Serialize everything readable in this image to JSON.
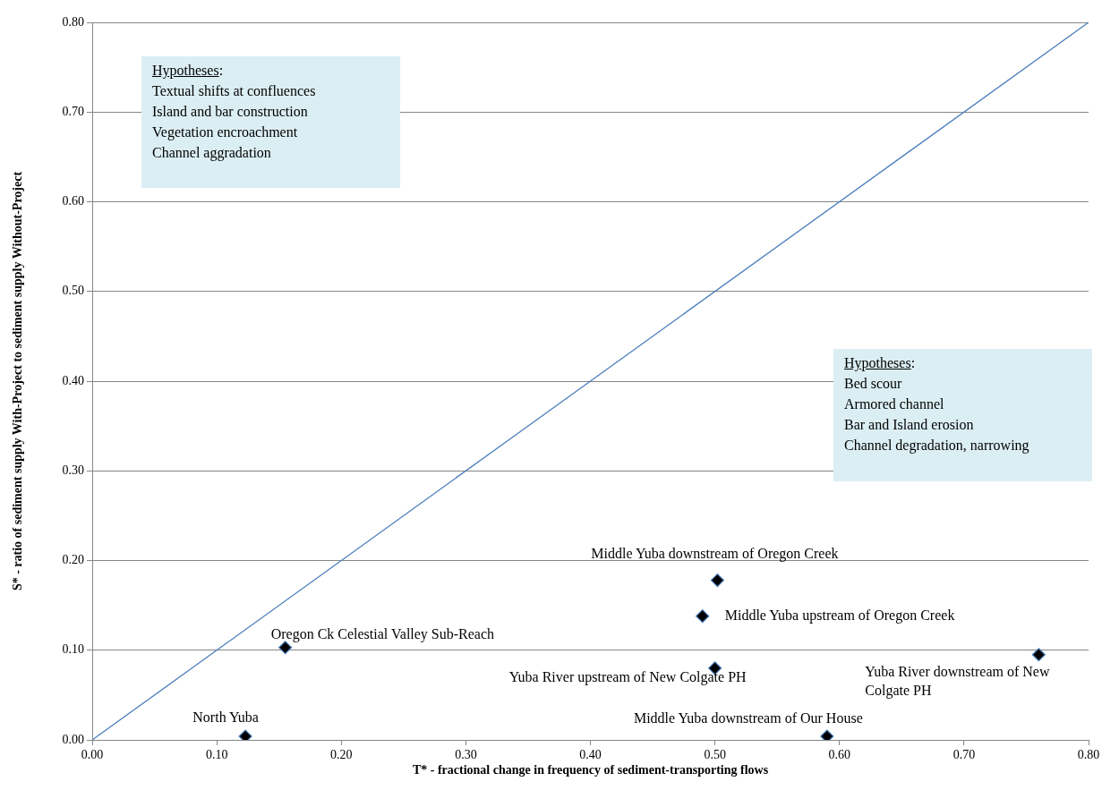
{
  "chart_data": {
    "type": "scatter",
    "xlabel": "T* - fractional change in frequency of sediment-transporting flows",
    "ylabel": "S* - ratio of sediment supply With-Project to sediment supply Without-Project",
    "xlim": [
      0,
      0.8
    ],
    "ylim": [
      0,
      0.8
    ],
    "xticks": [
      {
        "value": 0,
        "label": "0.00"
      },
      {
        "value": 0.1,
        "label": "0.10"
      },
      {
        "value": 0.2,
        "label": "0.20"
      },
      {
        "value": 0.3,
        "label": "0.30"
      },
      {
        "value": 0.4,
        "label": "0.40"
      },
      {
        "value": 0.5,
        "label": "0.50"
      },
      {
        "value": 0.6,
        "label": "0.60"
      },
      {
        "value": 0.7,
        "label": "0.70"
      },
      {
        "value": 0.8,
        "label": "0.80"
      }
    ],
    "yticks": [
      {
        "value": 0,
        "label": "0.00"
      },
      {
        "value": 0.1,
        "label": "0.10"
      },
      {
        "value": 0.2,
        "label": "0.20"
      },
      {
        "value": 0.3,
        "label": "0.30"
      },
      {
        "value": 0.4,
        "label": "0.40"
      },
      {
        "value": 0.5,
        "label": "0.50"
      },
      {
        "value": 0.6,
        "label": "0.60"
      },
      {
        "value": 0.7,
        "label": "0.70"
      },
      {
        "value": 0.8,
        "label": "0.80"
      }
    ],
    "grid": "y",
    "legend": false,
    "marker": "diamond",
    "series": [
      {
        "type": "scatter",
        "color": "#000000",
        "x": [
          0.123,
          0.155,
          0.502,
          0.49,
          0.5,
          0.59,
          0.76
        ],
        "values": [
          0.004,
          0.103,
          0.178,
          0.138,
          0.08,
          0.004,
          0.095
        ]
      },
      {
        "type": "line",
        "color": "#4a7ebb",
        "marker": "none",
        "line_style": "solid",
        "x": [
          0,
          0.8
        ],
        "values": [
          0,
          0.8
        ]
      }
    ],
    "annotations": [
      "Hypotheses:\nTextual shifts at confluences\nIsland and bar construction\nVegetation encroachment\nChannel aggradation",
      "Hypotheses:\nBed scour\nArmored channel\nBar and Island erosion\nChannel degradation, narrowing",
      {
        "text": "North Yuba",
        "x": 0.123,
        "y": 0.004
      },
      {
        "text": "Oregon Ck Celestial Valley Sub-Reach",
        "x": 0.155,
        "y": 0.103
      },
      {
        "text": "Middle Yuba downstream of Oregon Creek",
        "x": 0.502,
        "y": 0.178
      },
      {
        "text": "Middle Yuba upstream of Oregon Creek",
        "x": 0.49,
        "y": 0.138
      },
      {
        "text": "Yuba River upstream of New Colgate PH",
        "x": 0.5,
        "y": 0.08
      },
      {
        "text": "Middle Yuba downstream of Our House",
        "x": 0.59,
        "y": 0.004
      },
      {
        "text": "Yuba River downstream of New Colgate PH",
        "x": 0.76,
        "y": 0.095
      }
    ]
  }
}
